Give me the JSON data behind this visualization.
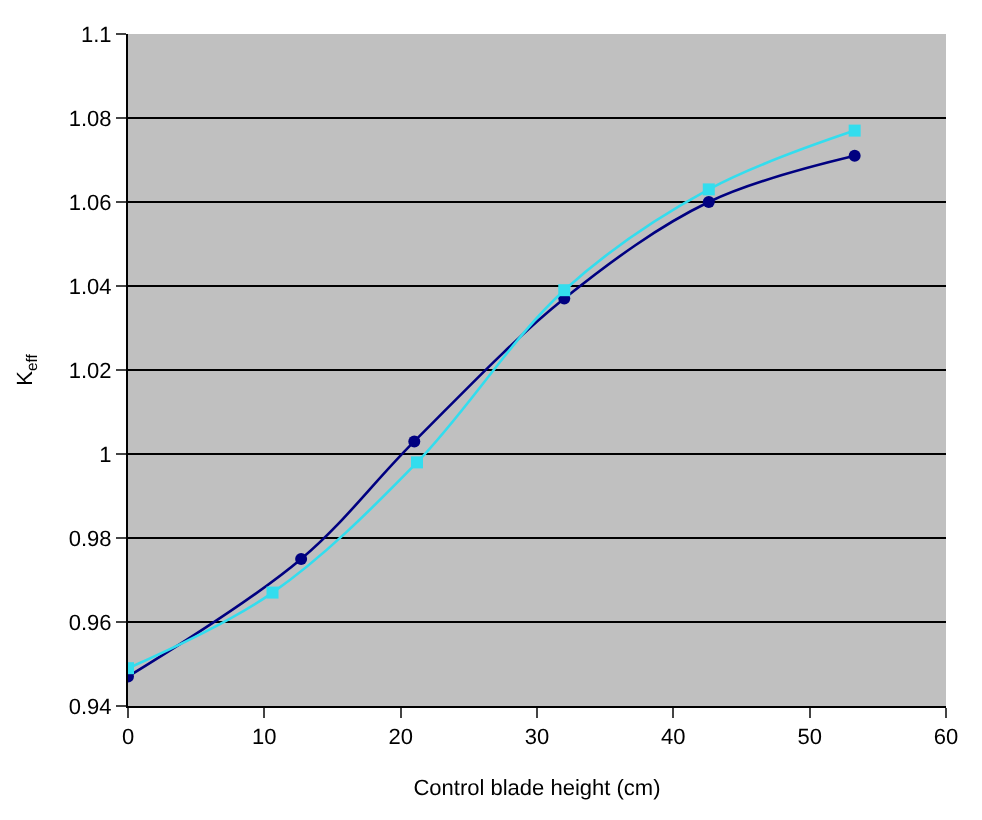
{
  "chart_data": {
    "type": "line",
    "xlabel": "Control blade height (cm)",
    "ylabel": "K$_{eff}$",
    "xlim": [
      0,
      60
    ],
    "xticks": [
      0,
      10,
      20,
      30,
      40,
      50,
      60
    ],
    "ylim": [
      0.94,
      1.1
    ],
    "yticks": [
      0.94,
      0.96,
      0.98,
      1,
      1.02,
      1.04,
      1.06,
      1.08,
      1.1
    ],
    "grid": "y",
    "line_style": "solid",
    "series": [
      {
        "color": "#000080",
        "marker": "circle",
        "x": [
          0,
          12.7,
          21,
          32,
          42.6,
          53.3
        ],
        "values": [
          0.947,
          0.975,
          1.003,
          1.037,
          1.06,
          1.071
        ]
      },
      {
        "color": "#33ddee",
        "marker": "square",
        "x": [
          0,
          10.6,
          21.2,
          32,
          42.6,
          53.3
        ],
        "values": [
          0.949,
          0.967,
          0.998,
          1.039,
          1.063,
          1.077
        ]
      }
    ]
  }
}
